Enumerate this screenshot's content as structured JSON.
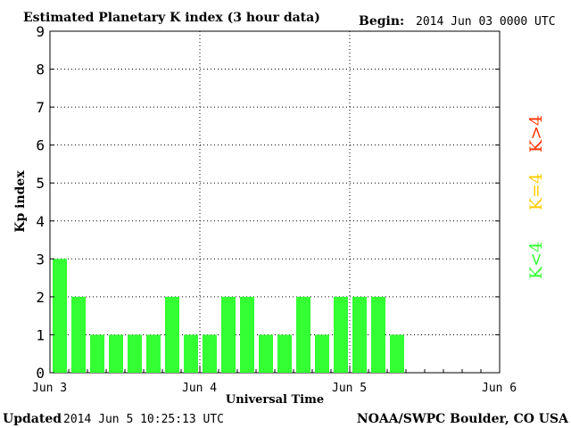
{
  "header": {
    "title": "Estimated Planetary K index (3 hour data)",
    "begin_label": "Begin:",
    "begin_value": "2014 Jun 03 0000 UTC"
  },
  "footer": {
    "updated_label": "Updated",
    "updated_value": "2014 Jun  5 10:25:13 UTC",
    "source": "NOAA/SWPC Boulder, CO USA"
  },
  "legend": {
    "items": [
      {
        "label": "K<4",
        "color": "#33ff33"
      },
      {
        "label": "K=4",
        "color": "#ffcc00"
      },
      {
        "label": "K>4",
        "color": "#ff3300"
      }
    ]
  },
  "chart_data": {
    "type": "bar",
    "title": "Estimated Planetary K index (3 hour data)",
    "xlabel": "Universal Time",
    "ylabel": "Kp index",
    "ylim": [
      0,
      9
    ],
    "yticks": [
      0,
      1,
      2,
      3,
      4,
      5,
      6,
      7,
      8,
      9
    ],
    "x_tick_labels": [
      "Jun 3",
      "Jun 4",
      "Jun 5",
      "Jun 6"
    ],
    "bin_hours": 3,
    "days": 3,
    "grid": true,
    "values": [
      3,
      2,
      1,
      1,
      1,
      1,
      2,
      1,
      1,
      2,
      2,
      1,
      1,
      2,
      1,
      2,
      2,
      2,
      1
    ],
    "colors": {
      "low": "#33ff33",
      "moderate": "#ffcc00",
      "high": "#ff3300"
    }
  }
}
